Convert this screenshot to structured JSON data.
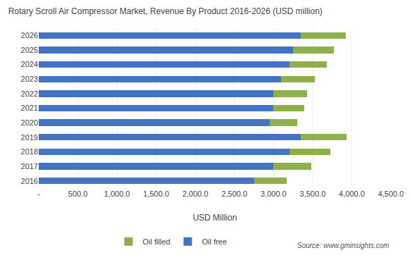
{
  "chart_data": {
    "type": "bar",
    "orientation": "horizontal",
    "stacked": true,
    "title": "Rotary Scroll Air Compressor Market, Revenue By Product 2016-2026 (USD million)",
    "xlabel": "USD Million",
    "categories": [
      "2016",
      "2017",
      "2018",
      "2019",
      "2020",
      "2021",
      "2022",
      "2023",
      "2024",
      "2025",
      "2026"
    ],
    "series": [
      {
        "name": "Oil free",
        "color": "#4472C4",
        "values": [
          2750,
          3000,
          3200,
          3350,
          2950,
          3000,
          3000,
          3100,
          3200,
          3250,
          3350
        ]
      },
      {
        "name": "Oil filled",
        "color": "#8DB04B",
        "values": [
          420,
          480,
          530,
          580,
          350,
          390,
          430,
          430,
          480,
          520,
          570
        ]
      }
    ],
    "xlim": [
      0,
      4500
    ],
    "xticks": [
      {
        "value": 0,
        "label": "-"
      },
      {
        "value": 500,
        "label": "500.0"
      },
      {
        "value": 1000,
        "label": "1,000.0"
      },
      {
        "value": 1500,
        "label": "1,500.0"
      },
      {
        "value": 2000,
        "label": "2,000.0"
      },
      {
        "value": 2500,
        "label": "2,500.0"
      },
      {
        "value": 3000,
        "label": "3,000.0"
      },
      {
        "value": 3500,
        "label": "3,500.0"
      },
      {
        "value": 4000,
        "label": "4,000.0"
      },
      {
        "value": 4500,
        "label": "4,500.0"
      }
    ],
    "grid": true,
    "legend": "bottom",
    "annotations": [
      "Source: www.gminsights.com"
    ]
  }
}
